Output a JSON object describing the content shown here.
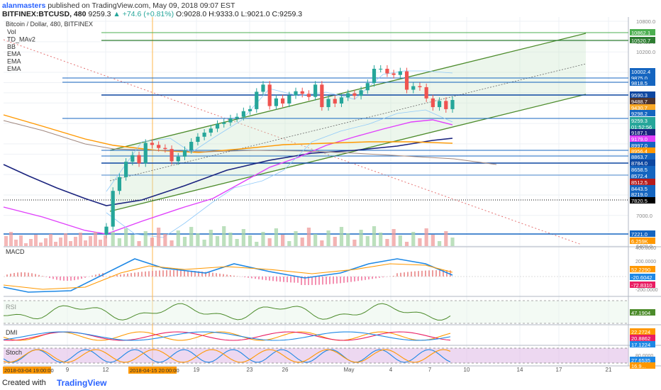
{
  "header": {
    "username": "alanmasters",
    "published_text": "published on TradingView.com, May 09, 2018 09:07 EST",
    "symbol": "BITFINEX:BTCUSD, 480",
    "last": "9259.3",
    "change": "▲ +74.6 (+0.81%)",
    "o": "O:9028.0",
    "h": "H:9333.0",
    "l": "L:9021.0",
    "c": "C:9259.3"
  },
  "legend": {
    "title": "Bitcoin / Dollar, 480, BITFINEX",
    "items": [
      "Vol",
      "TD_MAv2",
      "BB",
      "EMA",
      "EMA",
      "EMA"
    ]
  },
  "colors": {
    "up": "#26a69a",
    "down": "#ef5350",
    "channel": "#4c8b2b",
    "level": "#1565c0",
    "ema_blue": "#1a237e",
    "ema_magenta": "#e040fb",
    "ema_orange": "#ff9800"
  },
  "chart_data": [
    {
      "type": "line",
      "panel": "price",
      "title": "Bitcoin / Dollar, 480, BITFINEX",
      "ylim": [
        6400,
        10800
      ],
      "x_ticks": [
        "9",
        "12",
        "19",
        "23",
        "26",
        "May",
        "4",
        "7",
        "10",
        "14",
        "17",
        "21"
      ],
      "y_ticks": [
        10800,
        10400,
        10200,
        9800,
        9600,
        9400,
        9200,
        8800,
        8400,
        8200,
        7800,
        7400,
        7000,
        6400
      ],
      "series": [
        {
          "name": "Close",
          "values": [
            6780,
            7480,
            7750,
            8050,
            8180,
            8020,
            8420,
            8380,
            8320,
            8300,
            8060,
            8150,
            8280,
            8440,
            8540,
            8620,
            8700,
            8790,
            8820,
            8900,
            8930,
            9040,
            9080,
            9420,
            9560,
            9140,
            9290,
            9190,
            9350,
            9430,
            9380,
            9320,
            9560,
            9120,
            9280,
            9190,
            9310,
            9390,
            9340,
            9450,
            9590,
            9870,
            9870,
            9780,
            9750,
            9820,
            9460,
            9530,
            9510,
            9290,
            9120,
            9240,
            9080,
            9259.3
          ]
        }
      ],
      "price_labels": [
        {
          "value": "10862.1",
          "color": "#4caf50"
        },
        {
          "value": "10520.7",
          "color": "#2e7d32"
        },
        {
          "value": "10002.4",
          "color": "#1565c0"
        },
        {
          "value": "9875.0",
          "color": "#1565c0"
        },
        {
          "value": "9818.5",
          "color": "#1565c0"
        },
        {
          "value": "9590.3",
          "color": "#0d47a1"
        },
        {
          "value": "9488.7",
          "color": "#4e342e"
        },
        {
          "value": "9430.7",
          "color": "#f9a825"
        },
        {
          "value": "9298.2",
          "color": "#1565c0"
        },
        {
          "value": "9259.3",
          "color": "#26a69a"
        },
        {
          "value": "01:52:56",
          "color": "#26a69a"
        },
        {
          "value": "9187.1",
          "color": "#1a237e"
        },
        {
          "value": "9179.0",
          "color": "#e040fb"
        },
        {
          "value": "8997.0",
          "color": "#1565c0"
        },
        {
          "value": "8956.4",
          "color": "#ff9800"
        },
        {
          "value": "8863.7",
          "color": "#1565c0"
        },
        {
          "value": "8784.0",
          "color": "#0d47a1"
        },
        {
          "value": "8658.5",
          "color": "#1565c0"
        },
        {
          "value": "8572.4",
          "color": "#1565c0"
        },
        {
          "value": "8512.5",
          "color": "#b71c1c"
        },
        {
          "value": "8443.5",
          "color": "#1565c0"
        },
        {
          "value": "8219.0",
          "color": "#1565c0"
        },
        {
          "value": "7820.5",
          "color": "#000000"
        },
        {
          "value": "7221.0",
          "color": "#1565c0"
        },
        {
          "value": "6.259K",
          "color": "#ff9800"
        }
      ]
    },
    {
      "type": "line",
      "panel": "MACD",
      "title": "MACD",
      "y_ticks": [
        "400.0000",
        "200.0000",
        "-200.0000"
      ],
      "value_labels": [
        {
          "value": "52.2290",
          "color": "#ff9800"
        },
        {
          "value": "-20.6042",
          "color": "#1e88e5"
        },
        {
          "value": "-72.8310",
          "color": "#e91e63"
        }
      ]
    },
    {
      "type": "line",
      "panel": "RSI",
      "title": "RSI",
      "value_labels": [
        {
          "value": "47.1904",
          "color": "#4c8b2b"
        }
      ]
    },
    {
      "type": "line",
      "panel": "DMI",
      "title": "DMI",
      "value_labels": [
        {
          "value": "22.2724",
          "color": "#ff9800"
        },
        {
          "value": "20.8862",
          "color": "#e91e63"
        },
        {
          "value": "17.1224",
          "color": "#1e88e5"
        }
      ]
    },
    {
      "type": "line",
      "panel": "Stoch",
      "title": "Stoch",
      "y_ticks": [
        "80.0000"
      ],
      "value_labels": [
        {
          "value": "27.6535",
          "color": "#1e88e5"
        },
        {
          "value": "16.9...",
          "color": "#ff9800"
        }
      ]
    }
  ],
  "time_labels": [
    "2018-03-04 19:00:00",
    "2018-04-15 20:00:00"
  ],
  "footer": {
    "created_with": "Created with",
    "brand": "TradingView"
  }
}
